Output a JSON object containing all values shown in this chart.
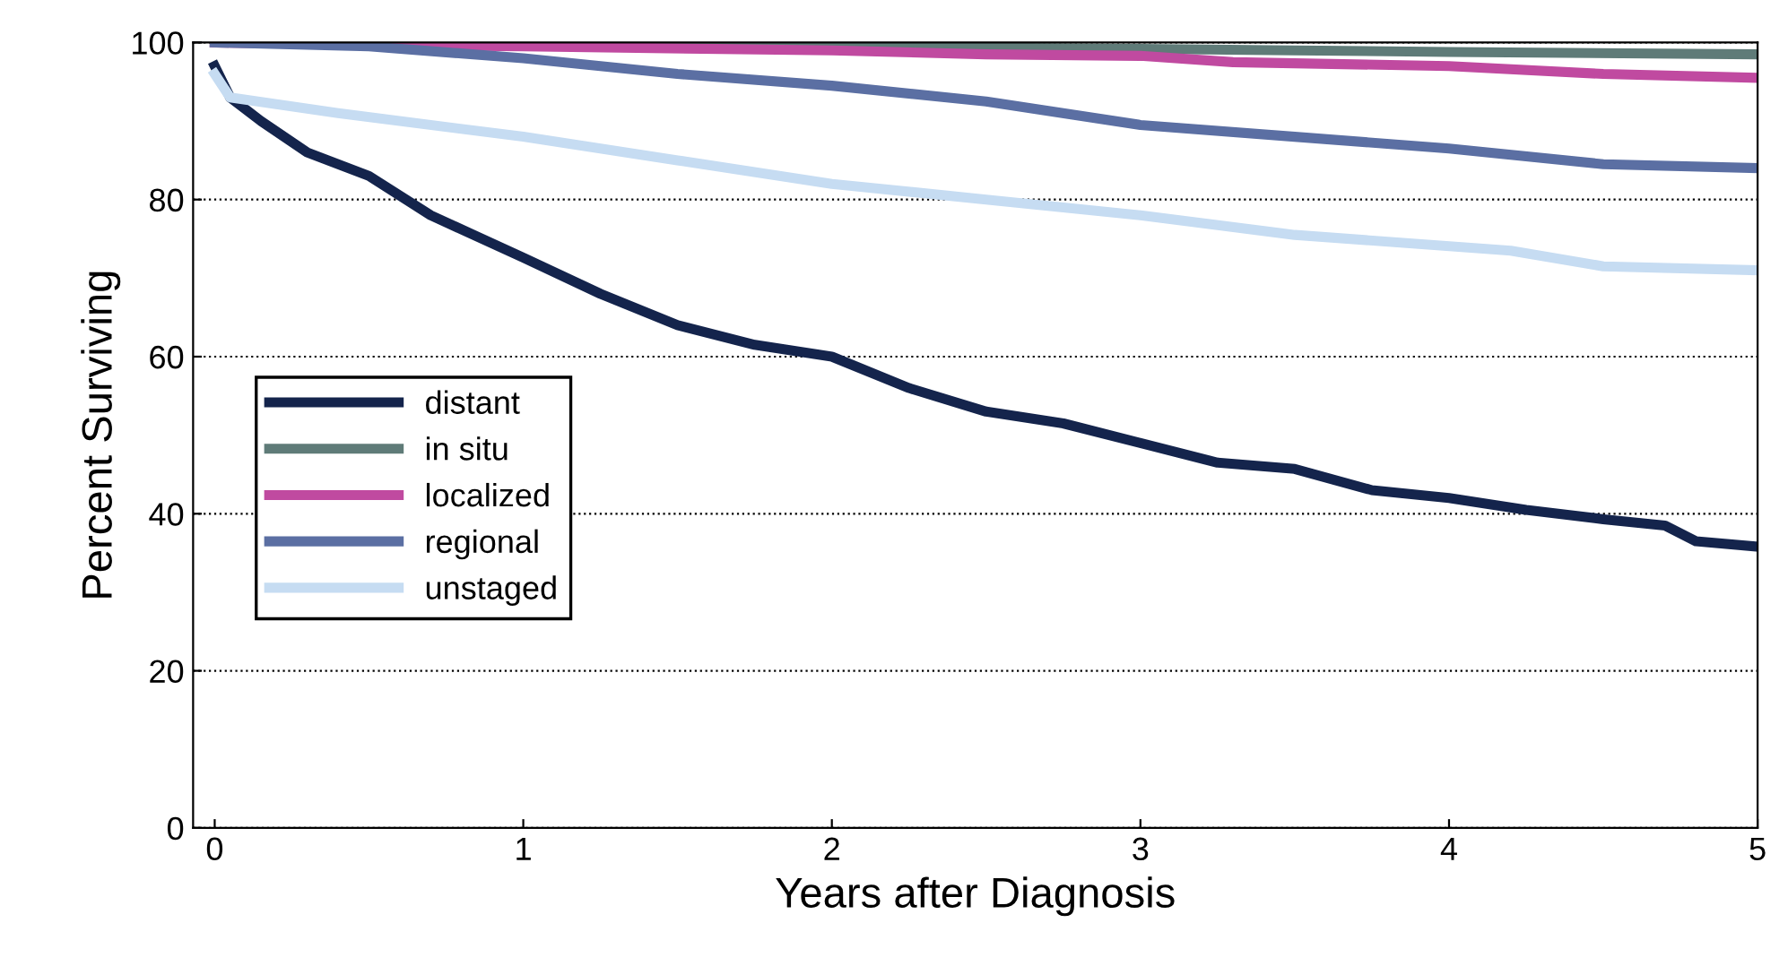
{
  "chart_data": {
    "type": "line",
    "xlabel": "Years after Diagnosis",
    "ylabel": "Percent Surviving",
    "xlim": [
      -0.07,
      5
    ],
    "ylim": [
      0,
      100
    ],
    "xticks": [
      0,
      1,
      2,
      3,
      4,
      5
    ],
    "yticks": [
      0,
      20,
      40,
      60,
      80,
      100
    ],
    "grid": "y",
    "legend": "center left",
    "line_style": "solid",
    "marker": "none",
    "series": [
      {
        "name": "distant",
        "color": "#14244c",
        "x": [
          0,
          0.05,
          0.15,
          0.3,
          0.5,
          0.7,
          1,
          1.25,
          1.5,
          1.75,
          2,
          2.25,
          2.5,
          2.75,
          3,
          3.25,
          3.5,
          3.75,
          4,
          4.25,
          4.5,
          4.7,
          4.8,
          5
        ],
        "values": [
          97,
          93,
          90,
          86,
          83,
          78,
          72.6,
          68,
          64,
          61.5,
          60,
          56,
          53,
          51.5,
          49,
          46.5,
          45.7,
          43,
          42,
          40.5,
          39.3,
          38.5,
          36.5,
          35.8
        ]
      },
      {
        "name": "in situ",
        "color": "#5f7b78",
        "x": [
          0,
          1,
          2,
          3,
          3.5,
          4,
          5
        ],
        "values": [
          100,
          99.8,
          99.5,
          99.2,
          99,
          98.8,
          98.5
        ]
      },
      {
        "name": "localized",
        "color": "#c04aa0",
        "x": [
          0,
          1,
          2,
          2.5,
          3,
          3.3,
          4,
          4.5,
          5
        ],
        "values": [
          100,
          99.5,
          99,
          98.5,
          98.3,
          97.5,
          97,
          96,
          95.5
        ]
      },
      {
        "name": "regional",
        "color": "#5b6fa3",
        "x": [
          0,
          0.5,
          1,
          1.5,
          2,
          2.5,
          3,
          3.5,
          4,
          4.5,
          5
        ],
        "values": [
          100,
          99.5,
          98,
          96,
          94.5,
          92.5,
          89.5,
          88,
          86.5,
          84.5,
          84
        ]
      },
      {
        "name": "unstaged",
        "color": "#c6dcf2",
        "x": [
          0,
          0.05,
          0.4,
          1,
          1.5,
          2,
          2.5,
          3,
          3.5,
          4.2,
          4.5,
          5
        ],
        "values": [
          96,
          93,
          91,
          88,
          85,
          82,
          80,
          78,
          75.5,
          73.5,
          71.5,
          71
        ]
      }
    ]
  }
}
